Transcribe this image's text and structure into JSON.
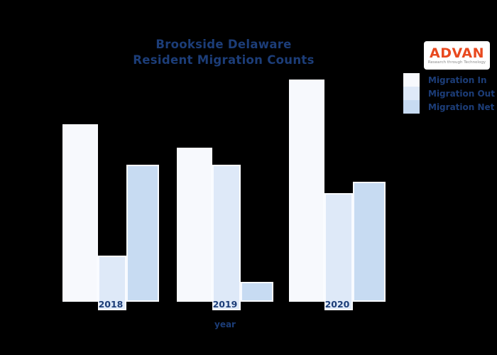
{
  "title": {
    "line1": "Brookside Delaware",
    "line2": "Resident Migration Counts"
  },
  "logo": {
    "brand": "ADVAN",
    "tagline": "Research through Technology"
  },
  "chart_data": {
    "type": "bar",
    "title": "Brookside Delaware Resident Migration Counts",
    "categories": [
      "2018",
      "2019",
      "2020"
    ],
    "series": [
      {
        "name": "Migration In",
        "color": "#F7F9FD",
        "values": [
          250,
          217,
          313
        ]
      },
      {
        "name": "Migration Out",
        "color": "#DEE9F8",
        "values": [
          65,
          193,
          153
        ]
      },
      {
        "name": "Migration Net",
        "color": "#C7DBF2",
        "values": [
          193,
          28,
          169
        ]
      }
    ],
    "xlabel": "year",
    "ylabel": "",
    "ylim": [
      0,
      330
    ],
    "grid": false,
    "legend_position": "right"
  },
  "colors": {
    "background": "#000000",
    "text": "#1C3D78",
    "logo_brand": "#E8491F",
    "logo_tagline": "#8C8C8C",
    "logo_bg": "#FFFFFF"
  }
}
